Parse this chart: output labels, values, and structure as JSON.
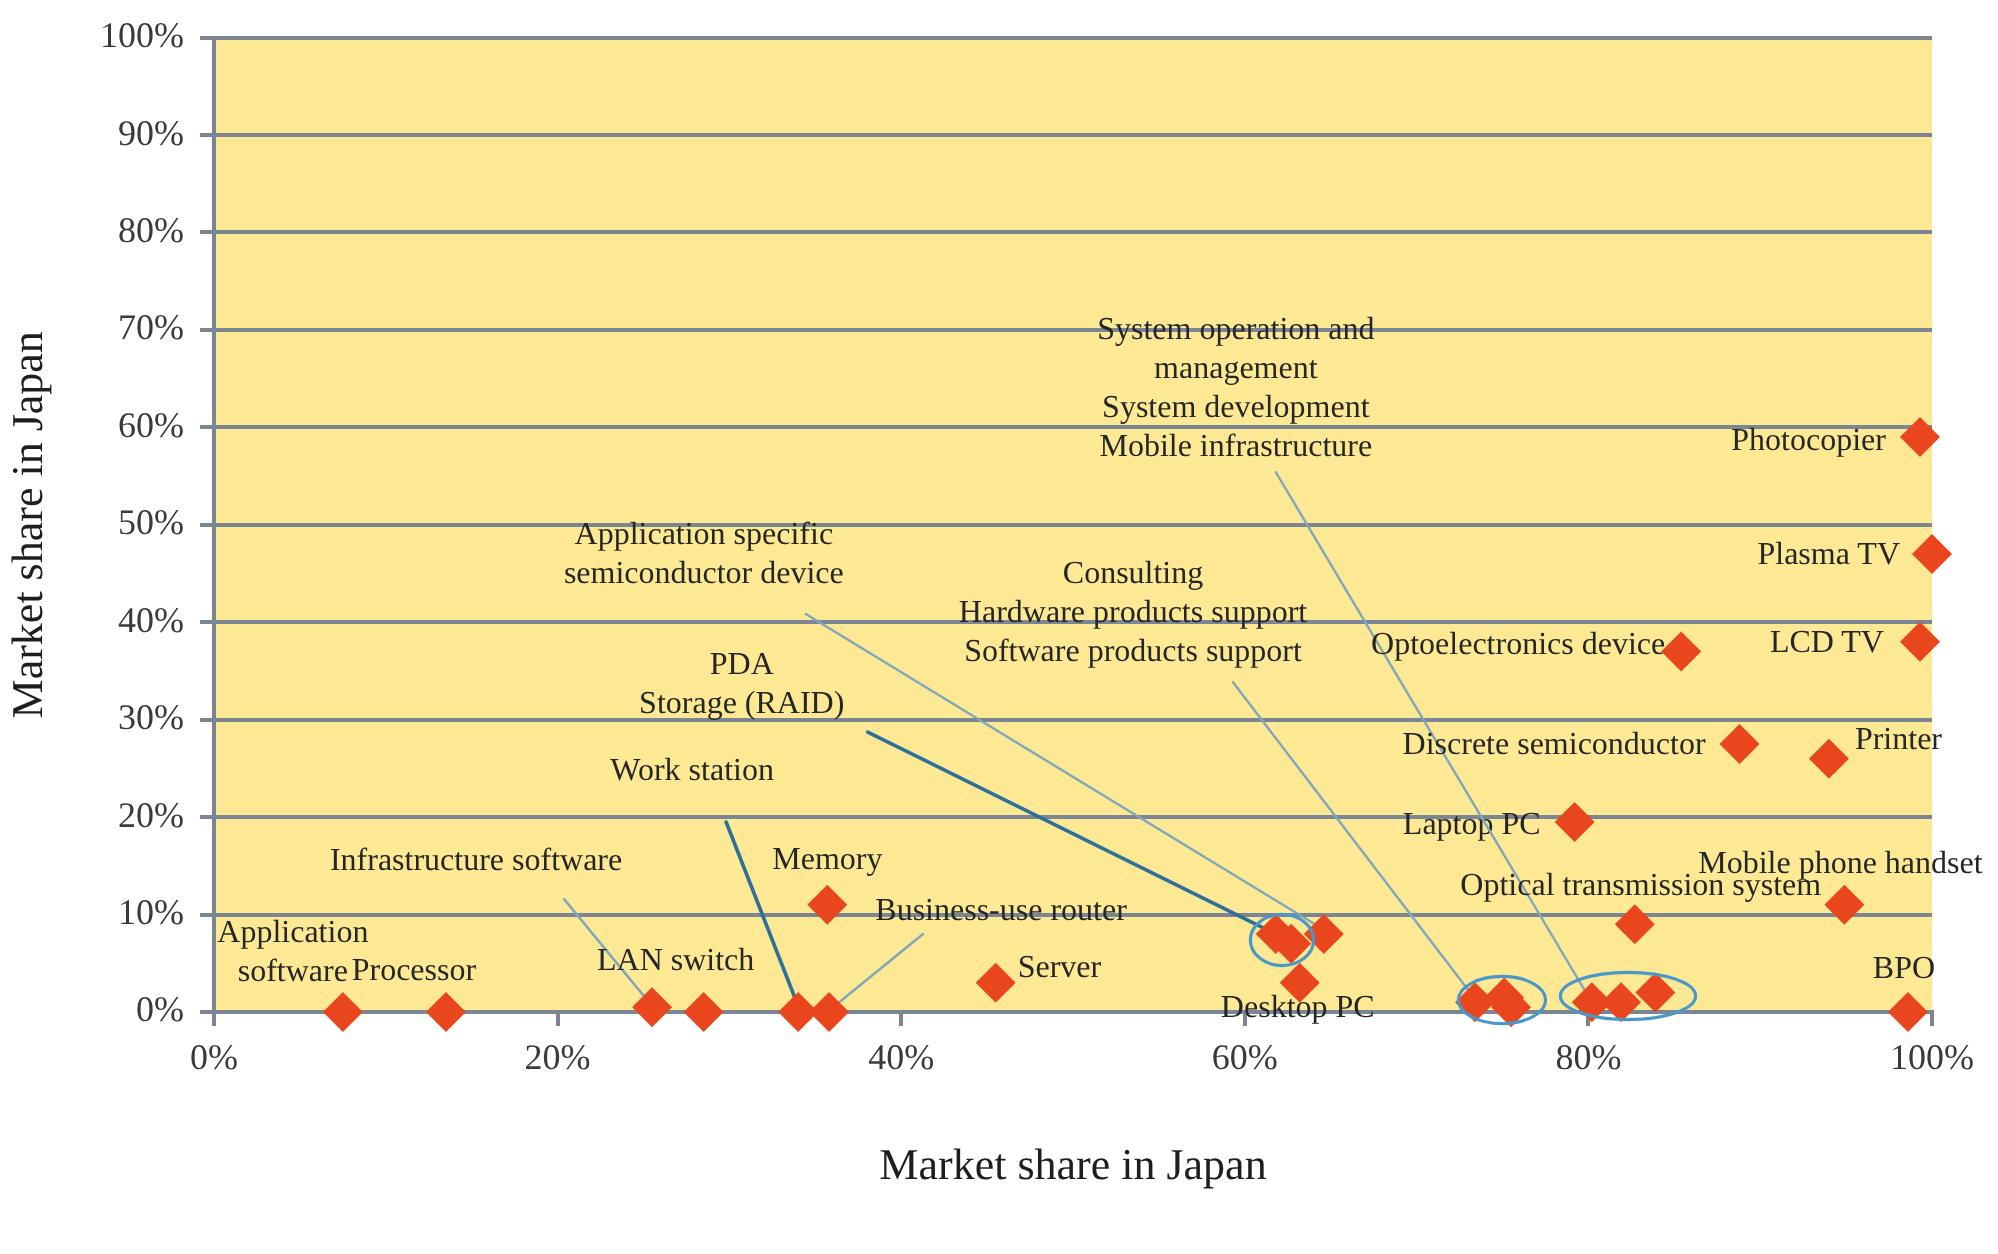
{
  "chart_data": {
    "type": "scatter",
    "xlabel": "Market share in Japan",
    "ylabel": "Market share in Japan",
    "x": [
      7.5,
      13.5,
      25.5,
      28.5,
      34,
      35.8,
      35.7,
      45.5,
      61.8,
      62.7,
      63.2,
      64.6,
      73.4,
      75.1,
      75.5,
      79.2,
      80.2,
      81.9,
      82.7,
      83.9,
      85.4,
      88.8,
      94,
      94.9,
      98.6,
      99.3,
      99.3,
      100
    ],
    "values": [
      0,
      0,
      0.5,
      0,
      0,
      0,
      11,
      3,
      8,
      7,
      3,
      8,
      1,
      1.5,
      0.5,
      19.5,
      1,
      1,
      9,
      2,
      37,
      27.5,
      26,
      11,
      0,
      38,
      59,
      47
    ],
    "color": "#e9461e",
    "marker": "diamond",
    "xlim": [
      0,
      100
    ],
    "ylim": [
      0,
      100
    ],
    "xticks": [
      {
        "value": 0,
        "label": "0%"
      },
      {
        "value": 20,
        "label": "20%"
      },
      {
        "value": 40,
        "label": "40%"
      },
      {
        "value": 60,
        "label": "60%"
      },
      {
        "value": 80,
        "label": "80%"
      },
      {
        "value": 100,
        "label": "100%"
      }
    ],
    "yticks": [
      {
        "value": 0,
        "label": "0%"
      },
      {
        "value": 10,
        "label": "10%"
      },
      {
        "value": 20,
        "label": "20%"
      },
      {
        "value": 30,
        "label": "30%"
      },
      {
        "value": 40,
        "label": "40%"
      },
      {
        "value": 50,
        "label": "50%"
      },
      {
        "value": 60,
        "label": "60%"
      },
      {
        "value": 70,
        "label": "70%"
      },
      {
        "value": 80,
        "label": "80%"
      },
      {
        "value": 90,
        "label": "90%"
      },
      {
        "value": 100,
        "label": "100%"
      }
    ],
    "grid": "y",
    "annotations": [
      {
        "text": "Application\nsoftware",
        "x": 7.5,
        "y": 0
      },
      {
        "text": "Processor",
        "x": 13.5,
        "y": 0
      },
      {
        "text": "Infrastructure software",
        "x": 25.5,
        "y": 0.5
      },
      {
        "text": "LAN switch",
        "x": 28.5,
        "y": 0
      },
      {
        "text": "Work station",
        "x": 34,
        "y": 0
      },
      {
        "text": "Business-use router",
        "x": 35.8,
        "y": 0
      },
      {
        "text": "Memory",
        "x": 35.7,
        "y": 11
      },
      {
        "text": "Server",
        "x": 45.5,
        "y": 3
      },
      {
        "text": "PDA\nStorage (RAID)",
        "x": 61.8,
        "y": 8
      },
      {
        "text": "Application specific\nsemiconductor device",
        "x": 64.6,
        "y": 8
      },
      {
        "text": "Desktop PC",
        "x": 63.2,
        "y": 3
      },
      {
        "text": "Consulting\nHardware products support\nSoftware products support",
        "x": 73.4,
        "y": 1
      },
      {
        "text": "Laptop PC",
        "x": 79.2,
        "y": 19.5
      },
      {
        "text": "System operation and\nmanagement\nSystem development\nMobile infrastructure",
        "x": 80.2,
        "y": 1
      },
      {
        "text": "Optical transmission system",
        "x": 82.7,
        "y": 9
      },
      {
        "text": "Optoelectronics device",
        "x": 85.4,
        "y": 37
      },
      {
        "text": "Discrete semiconductor",
        "x": 88.8,
        "y": 27.5
      },
      {
        "text": "Printer",
        "x": 94,
        "y": 26
      },
      {
        "text": "Mobile phone handset",
        "x": 94.9,
        "y": 11
      },
      {
        "text": "BPO",
        "x": 98.6,
        "y": 0
      },
      {
        "text": "LCD TV",
        "x": 99.3,
        "y": 38
      },
      {
        "text": "Photocopier",
        "x": 99.3,
        "y": 59
      },
      {
        "text": "Plasma TV",
        "x": 100,
        "y": 47
      }
    ]
  }
}
